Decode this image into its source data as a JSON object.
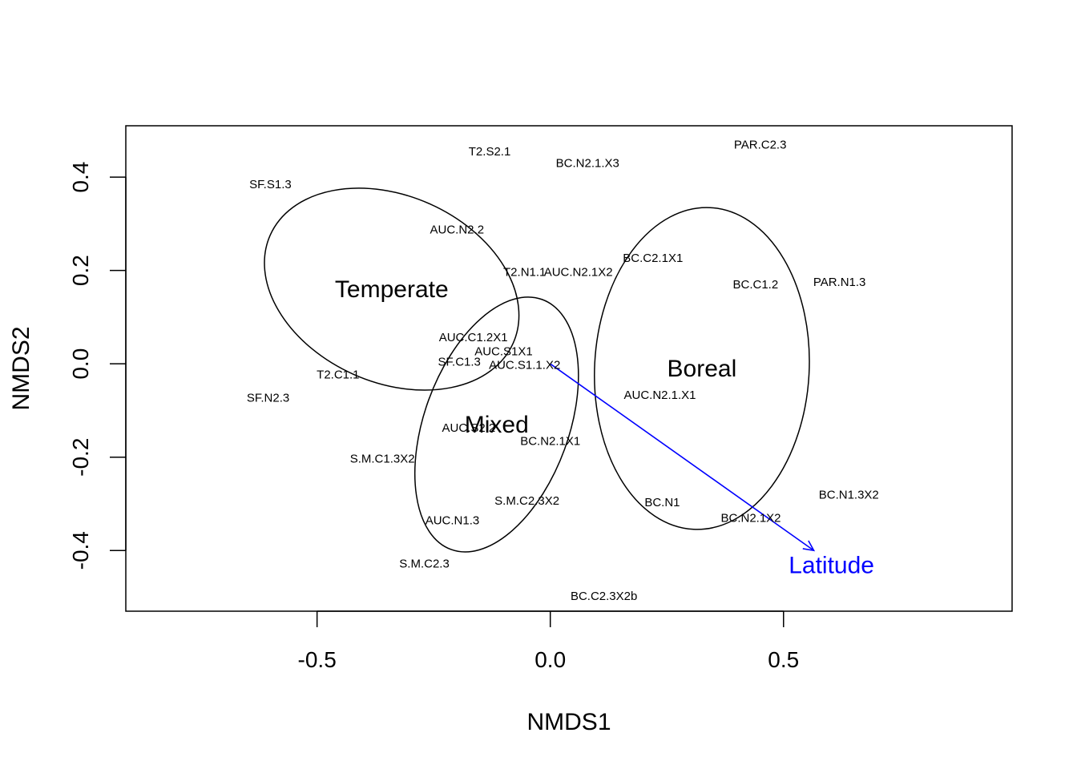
{
  "chart_data": {
    "type": "scatter",
    "xlabel": "NMDS1",
    "ylabel": "NMDS2",
    "xlim": [
      -0.91,
      0.99
    ],
    "ylim": [
      -0.53,
      0.51
    ],
    "xticks": [
      -0.5,
      0.0,
      0.5
    ],
    "xtick_labels": [
      "-0.5",
      "0.0",
      "0.5"
    ],
    "yticks": [
      -0.4,
      -0.2,
      0.0,
      0.2,
      0.4
    ],
    "ytick_labels": [
      "-0.4",
      "-0.2",
      "0.0",
      "0.2",
      "0.4"
    ],
    "grid": false,
    "points": [
      {
        "label": "T2.S2.1",
        "x": -0.13,
        "y": 0.455
      },
      {
        "label": "BC.N2.1.X3",
        "x": 0.08,
        "y": 0.43
      },
      {
        "label": "PAR.C2.3",
        "x": 0.45,
        "y": 0.47
      },
      {
        "label": "SF.S1.3",
        "x": -0.6,
        "y": 0.385
      },
      {
        "label": "AUC.N2.2",
        "x": -0.2,
        "y": 0.288
      },
      {
        "label": "T2.N1.1",
        "x": -0.055,
        "y": 0.197
      },
      {
        "label": "AUC.N2.1X2",
        "x": 0.06,
        "y": 0.197
      },
      {
        "label": "BC.C2.1X1",
        "x": 0.22,
        "y": 0.227
      },
      {
        "label": "BC.C1.2",
        "x": 0.44,
        "y": 0.17
      },
      {
        "label": "PAR.N1.3",
        "x": 0.62,
        "y": 0.175
      },
      {
        "label": "AUC.C1.2X1",
        "x": -0.165,
        "y": 0.057
      },
      {
        "label": "AUC.S1X1",
        "x": -0.1,
        "y": 0.027
      },
      {
        "label": "SF.C1.3",
        "x": -0.195,
        "y": 0.005
      },
      {
        "label": "AUC.S1.1.X2",
        "x": -0.055,
        "y": -0.002
      },
      {
        "label": "T2.C1.1",
        "x": -0.455,
        "y": -0.023
      },
      {
        "label": "SF.N2.3",
        "x": -0.605,
        "y": -0.073
      },
      {
        "label": "AUC.N2.1.X1",
        "x": 0.235,
        "y": -0.067
      },
      {
        "label": "AUC.S2.2",
        "x": -0.175,
        "y": -0.137
      },
      {
        "label": "BC.N2.1X1",
        "x": 0.0,
        "y": -0.165
      },
      {
        "label": "S.M.C1.3X2",
        "x": -0.36,
        "y": -0.203
      },
      {
        "label": "BC.N1.3X2",
        "x": 0.64,
        "y": -0.28
      },
      {
        "label": "S.M.C2.3X2",
        "x": -0.05,
        "y": -0.293
      },
      {
        "label": "BC.N1",
        "x": 0.24,
        "y": -0.297
      },
      {
        "label": "BC.N2.1X2",
        "x": 0.43,
        "y": -0.33
      },
      {
        "label": "AUC.N1.3",
        "x": -0.21,
        "y": -0.335
      },
      {
        "label": "S.M.C2.3",
        "x": -0.27,
        "y": -0.428
      },
      {
        "label": "BC.C2.3X2b",
        "x": 0.115,
        "y": -0.497
      }
    ],
    "ellipses": [
      {
        "label": "Temperate",
        "cx": -0.34,
        "cy": 0.16,
        "rx": 0.285,
        "ry": 0.2,
        "angle_deg": 24
      },
      {
        "label": "Mixed",
        "cx": -0.115,
        "cy": -0.13,
        "rx": 0.155,
        "ry": 0.285,
        "angle_deg": 20
      },
      {
        "label": "Boreal",
        "cx": 0.325,
        "cy": -0.01,
        "rx": 0.23,
        "ry": 0.345,
        "angle_deg": 3
      }
    ],
    "vectors": [
      {
        "label": "Latitude",
        "x0": 0.0,
        "y0": 0.0,
        "x1": 0.565,
        "y1": -0.4,
        "color": "#0000ff"
      }
    ]
  }
}
